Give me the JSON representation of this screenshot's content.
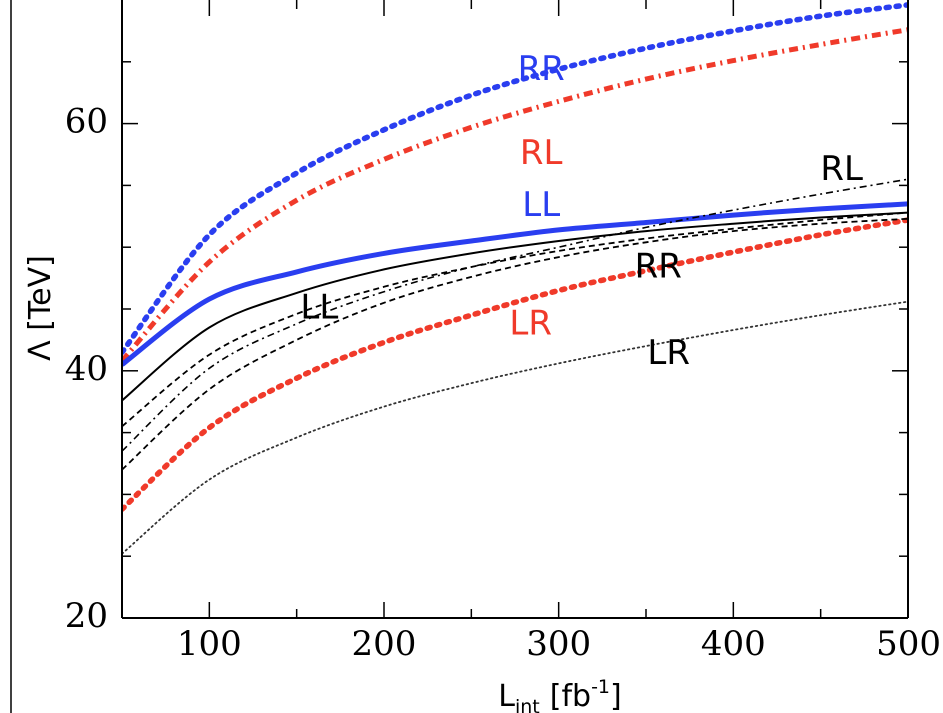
{
  "chart_data": {
    "type": "line",
    "xlabel": "L",
    "xlabel_subscript": "int",
    "xlabel_unit": "[fb",
    "xlabel_unit_exp": "-1",
    "xlabel_unit_close": "]",
    "ylabel": "Λ [TeV]",
    "xlim": [
      50,
      500
    ],
    "ylim": [
      20,
      70
    ],
    "xticks": [
      "100",
      "200",
      "300",
      "400",
      "500"
    ],
    "yticks": [
      "20",
      "40",
      "60"
    ],
    "grid": false,
    "colors": {
      "blue": "#2a3ef0",
      "red": "#f03a2a",
      "black": "#000000",
      "dark": "#333333"
    },
    "series": [
      {
        "name": "RR",
        "color": "#2a3ef0",
        "style": "dotted-thick",
        "x": [
          50,
          100,
          150,
          200,
          250,
          300,
          350,
          400,
          450,
          500
        ],
        "y": [
          41.5,
          51.0,
          56.0,
          59.5,
          62.3,
          64.4,
          66.1,
          67.5,
          68.7,
          69.6
        ]
      },
      {
        "name": "RL",
        "color": "#f03a2a",
        "style": "dashdot-thick",
        "x": [
          50,
          100,
          150,
          200,
          250,
          300,
          350,
          400,
          450,
          500
        ],
        "y": [
          40.8,
          48.8,
          53.8,
          57.1,
          59.7,
          61.8,
          63.6,
          65.1,
          66.4,
          67.6
        ]
      },
      {
        "name": "LL",
        "color": "#2a3ef0",
        "style": "solid-thick",
        "x": [
          50,
          100,
          150,
          200,
          250,
          300,
          350,
          400,
          450,
          500
        ],
        "y": [
          40.5,
          45.8,
          48.0,
          49.5,
          50.5,
          51.4,
          52.0,
          52.6,
          53.1,
          53.5
        ]
      },
      {
        "name": "LR",
        "color": "#f03a2a",
        "style": "dotted-thick",
        "x": [
          50,
          100,
          150,
          200,
          250,
          300,
          350,
          400,
          450,
          500
        ],
        "y": [
          28.8,
          35.4,
          39.4,
          42.3,
          44.5,
          46.5,
          48.1,
          49.6,
          51.0,
          52.2
        ]
      },
      {
        "name": "LL",
        "color": "#000000",
        "style": "solid-thin",
        "x": [
          50,
          100,
          150,
          200,
          250,
          300,
          350,
          400,
          450,
          500
        ],
        "y": [
          37.6,
          43.5,
          46.3,
          48.2,
          49.5,
          50.5,
          51.3,
          51.9,
          52.4,
          52.8
        ]
      },
      {
        "name": "RL",
        "color": "#000000",
        "style": "dashdot-thin",
        "x": [
          50,
          100,
          150,
          200,
          250,
          300,
          350,
          400,
          450,
          500
        ],
        "y": [
          33.5,
          40.2,
          43.8,
          46.4,
          48.4,
          50.0,
          51.6,
          53.0,
          54.3,
          55.5
        ]
      },
      {
        "name": "RR",
        "color": "#000000",
        "style": "dashed-thin",
        "x": [
          50,
          100,
          150,
          200,
          250,
          300,
          350,
          400,
          450,
          500
        ],
        "y": [
          35.5,
          41.3,
          44.6,
          46.8,
          48.4,
          49.7,
          50.7,
          51.5,
          52.2,
          52.8
        ]
      },
      {
        "name": "",
        "color": "#000000",
        "style": "dashed-thin",
        "x": [
          50,
          100,
          150,
          200,
          250,
          300,
          350,
          400,
          450,
          500
        ],
        "y": [
          32.0,
          38.5,
          42.5,
          45.5,
          47.6,
          49.2,
          50.4,
          51.3,
          51.9,
          52.3
        ]
      },
      {
        "name": "LR",
        "color": "#333333",
        "style": "dotted-thin",
        "x": [
          50,
          100,
          150,
          200,
          250,
          300,
          350,
          400,
          450,
          500
        ],
        "y": [
          25.2,
          31.2,
          34.6,
          37.1,
          39.0,
          40.6,
          42.0,
          43.3,
          44.5,
          45.6
        ]
      }
    ],
    "labels": [
      {
        "text": "RR",
        "color": "#2a3ef0",
        "x": 290,
        "y": 64.3
      },
      {
        "text": "RL",
        "color": "#f03a2a",
        "x": 290,
        "y": 57.5
      },
      {
        "text": "LL",
        "color": "#2a3ef0",
        "x": 290,
        "y": 53.3
      },
      {
        "text": "RL",
        "color": "#000000",
        "x": 462,
        "y": 56.2
      },
      {
        "text": "LL",
        "color": "#000000",
        "x": 163,
        "y": 45.0
      },
      {
        "text": "RR",
        "color": "#000000",
        "x": 357,
        "y": 48.3
      },
      {
        "text": "LR",
        "color": "#f03a2a",
        "x": 284,
        "y": 43.7
      },
      {
        "text": "LR",
        "color": "#000000",
        "x": 363,
        "y": 41.3
      }
    ]
  }
}
